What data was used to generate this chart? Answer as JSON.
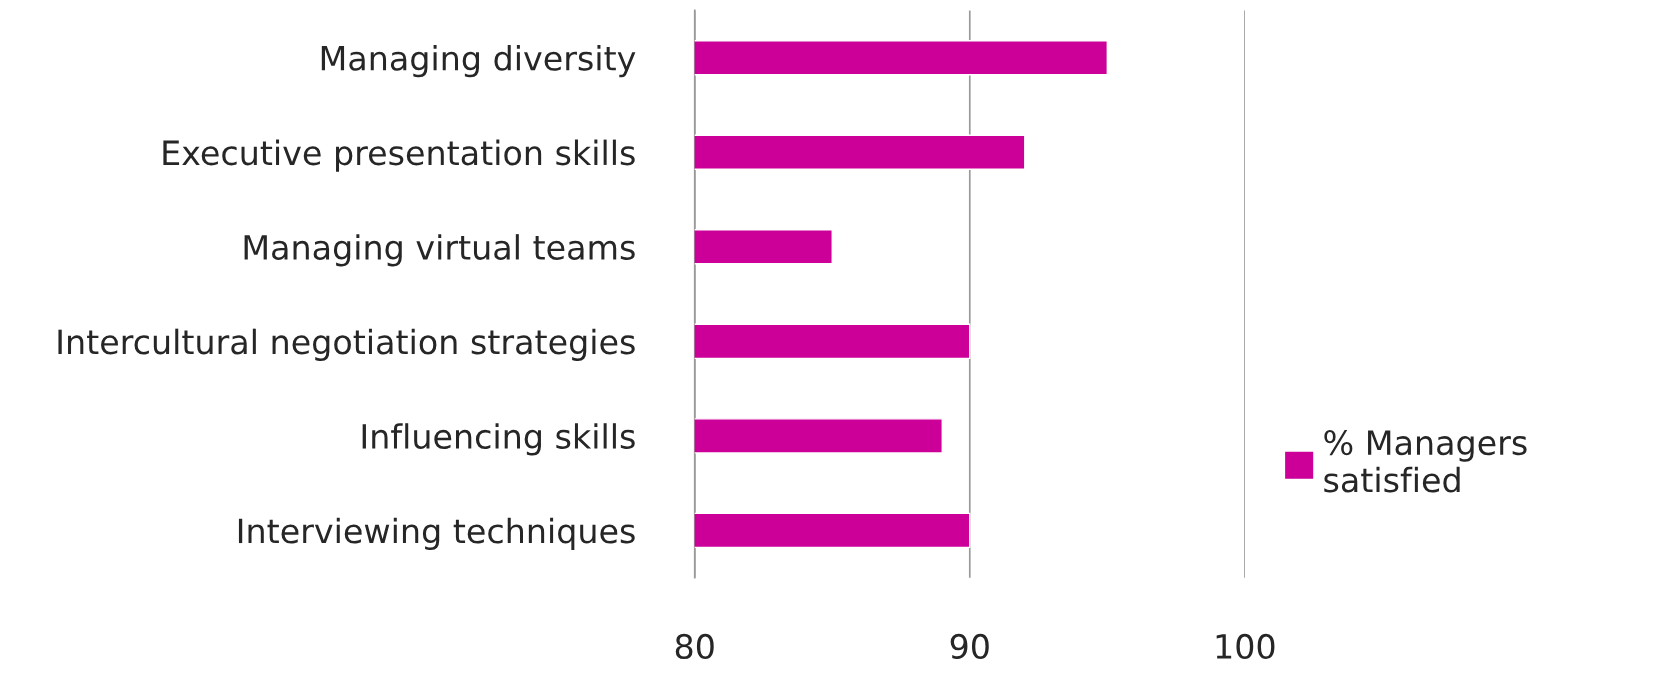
{
  "chart_data": {
    "type": "bar",
    "orientation": "horizontal",
    "categories": [
      "Managing diversity",
      "Executive presentation skills",
      "Managing virtual teams",
      "Intercultural negotiation strategies",
      "Influencing skills",
      "Interviewing techniques"
    ],
    "series": [
      {
        "name": "% Managers\nsatisfied",
        "color": "#cc0099",
        "values": [
          95,
          92,
          85,
          90,
          89,
          90
        ]
      }
    ],
    "xlim": [
      80,
      100
    ],
    "xticks": [
      80,
      90,
      100
    ],
    "grid": "x",
    "legend": "right"
  }
}
